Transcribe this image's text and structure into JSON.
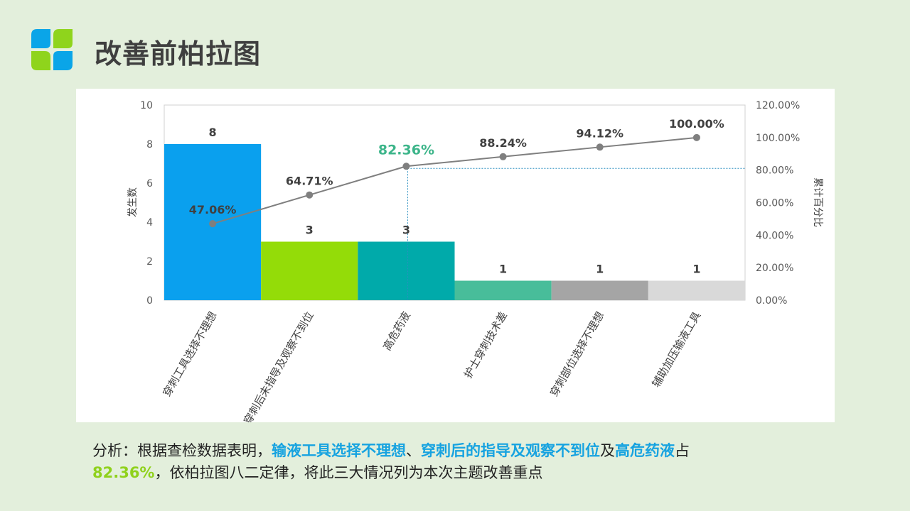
{
  "page": {
    "title": "改善前柏拉图"
  },
  "analysis": {
    "prefix": "分析：根据查检数据表明，",
    "highlight_1": "输液工具选择不理想",
    "sep_1": "、",
    "highlight_2": "穿刺后的指导及观察不到位",
    "sep_2": "及",
    "highlight_3": "高危药液",
    "mid": "占",
    "highlight_pct": "82.36%",
    "suffix": "，依柏拉图八二定律，将此三大情况列为本次主题改善重点"
  },
  "colors": {
    "logo_blue": "#0aa5e8",
    "logo_green": "#8fd41c",
    "highlight_blue": "#17a3e0",
    "highlight_green": "#8fd11c",
    "cumulative_line": "#7f7f7f",
    "key_point_label": "#3db58a"
  },
  "chart_data": {
    "type": "bar",
    "categories": [
      "穿刺工具选择不理想",
      "穿刺后未指导及观察不到位",
      "高危药液",
      "护士穿刺技术差",
      "穿刺部位选择不理想",
      "辅助加压输液工具"
    ],
    "ylabel": "发生数",
    "y2label": "累计百分比",
    "ylim": [
      0,
      10
    ],
    "y2lim": [
      0,
      1.2
    ],
    "yticks": [
      "0",
      "2",
      "4",
      "6",
      "8",
      "10"
    ],
    "y2ticks": [
      "0.00%",
      "20.00%",
      "40.00%",
      "60.00%",
      "80.00%",
      "100.00%",
      "120.00%"
    ],
    "bar_colors": [
      "#0aa0ee",
      "#94dc08",
      "#00aaaa",
      "#48bd9a",
      "#a5a5a5",
      "#d9d9d9"
    ],
    "series": [
      {
        "type": "bar",
        "values": [
          8,
          3,
          3,
          1,
          1,
          1
        ],
        "labels": [
          "8",
          "3",
          "3",
          "1",
          "1",
          "1"
        ]
      },
      {
        "type": "line",
        "values": [
          0.4706,
          0.6471,
          0.8236,
          0.8824,
          0.9412,
          1.0
        ],
        "labels": [
          "47.06%",
          "64.71%",
          "82.36%",
          "88.24%",
          "94.12%",
          "100.00%"
        ]
      }
    ],
    "highlight_index": 2,
    "grid": false,
    "legend": "none"
  }
}
